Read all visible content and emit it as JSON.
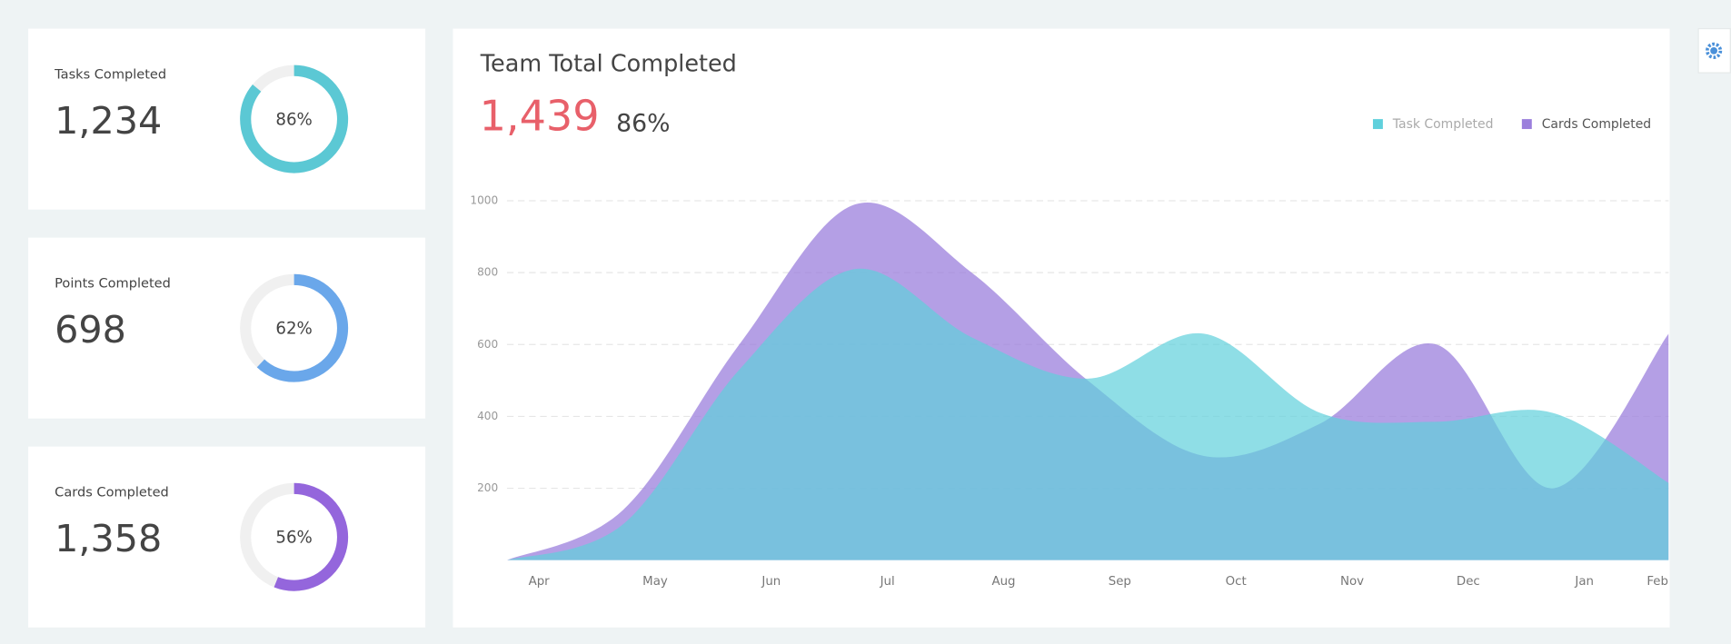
{
  "cards": [
    {
      "label": "Tasks Completed",
      "value": "1,234",
      "percent": 86,
      "percent_label": "86%",
      "color": "#5bc8d4"
    },
    {
      "label": "Points Completed",
      "value": "698",
      "percent": 62,
      "percent_label": "62%",
      "color": "#6aa7ea"
    },
    {
      "label": "Cards Completed",
      "value": "1,358",
      "percent": 56,
      "percent_label": "56%",
      "color": "#9466dc"
    }
  ],
  "chart_data": {
    "type": "area",
    "title": "Team Total Completed",
    "total": "1,439",
    "total_percent": "86%",
    "categories": [
      "Apr",
      "May",
      "Jun",
      "Jul",
      "Aug",
      "Sep",
      "Oct",
      "Nov",
      "Dec",
      "Jan",
      "Feb"
    ],
    "series": [
      {
        "name": "Task Completed",
        "color": "#5fd0dc",
        "values": [
          0,
          100,
          530,
          810,
          620,
          505,
          630,
          410,
          385,
          410,
          215
        ]
      },
      {
        "name": "Cards Completed",
        "color": "#9b7fdc",
        "values": [
          0,
          140,
          600,
          990,
          800,
          500,
          290,
          380,
          600,
          200,
          630
        ]
      }
    ],
    "ylim": [
      0,
      1000
    ],
    "yticks": [
      200,
      400,
      600,
      800,
      1000
    ],
    "grid": true,
    "legend": "top-right"
  }
}
